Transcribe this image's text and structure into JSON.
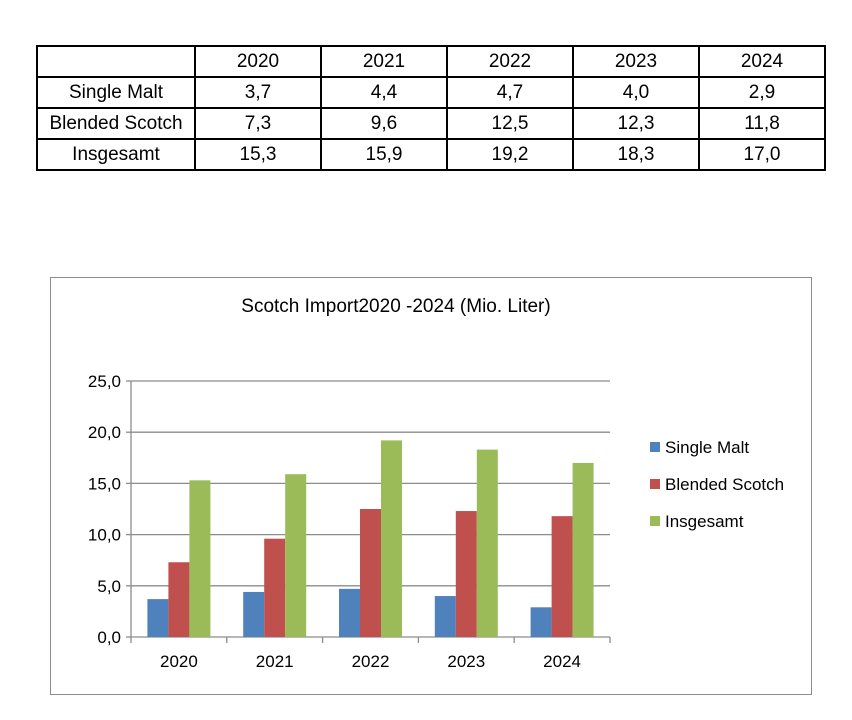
{
  "table": {
    "headers": [
      "",
      "2020",
      "2021",
      "2022",
      "2023",
      "2024"
    ],
    "rows": [
      {
        "label": "Single Malt",
        "values": [
          "3,7",
          "4,4",
          "4,7",
          "4,0",
          "2,9"
        ]
      },
      {
        "label": "Blended Scotch",
        "values": [
          "7,3",
          "9,6",
          "12,5",
          "12,3",
          "11,8"
        ]
      },
      {
        "label": "Insgesamt",
        "values": [
          "15,3",
          "15,9",
          "19,2",
          "18,3",
          "17,0"
        ]
      }
    ]
  },
  "chart_data": {
    "type": "bar",
    "title": "Scotch Import2020 -2024 (Mio. Liter)",
    "categories": [
      "2020",
      "2021",
      "2022",
      "2023",
      "2024"
    ],
    "series": [
      {
        "name": "Single Malt",
        "values": [
          3.7,
          4.4,
          4.7,
          4.0,
          2.9
        ],
        "color": "#4f81bd"
      },
      {
        "name": "Blended Scotch",
        "values": [
          7.3,
          9.6,
          12.5,
          12.3,
          11.8
        ],
        "color": "#c0504d"
      },
      {
        "name": "Insgesamt",
        "values": [
          15.3,
          15.9,
          19.2,
          18.3,
          17.0
        ],
        "color": "#9bbb59"
      }
    ],
    "xlabel": "",
    "ylabel": "",
    "ylim": [
      0,
      25
    ],
    "yticks": [
      0,
      5,
      10,
      15,
      20,
      25
    ],
    "ytick_labels": [
      "0,0",
      "5,0",
      "10,0",
      "15,0",
      "20,0",
      "25,0"
    ],
    "grid": true,
    "legend_position": "right"
  }
}
